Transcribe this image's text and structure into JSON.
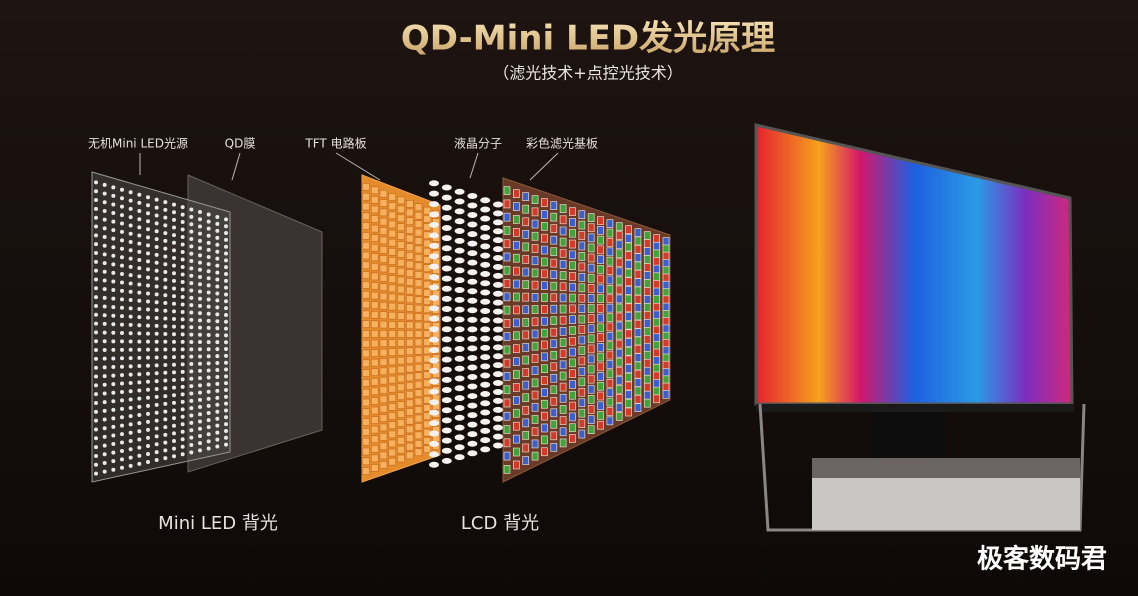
{
  "header": {
    "title": "QD-Mini LED发光原理",
    "subtitle": "（滤光技术+点控光技术）"
  },
  "layers": [
    {
      "label": "无机Mini LED光源"
    },
    {
      "label": "QD膜"
    },
    {
      "label": "TFT 电路板"
    },
    {
      "label": "液晶分子"
    },
    {
      "label": "彩色滤光基板"
    }
  ],
  "groups": [
    {
      "label": "Mini LED 背光"
    },
    {
      "label": "LCD 背光"
    }
  ],
  "watermark": "极客数码君"
}
